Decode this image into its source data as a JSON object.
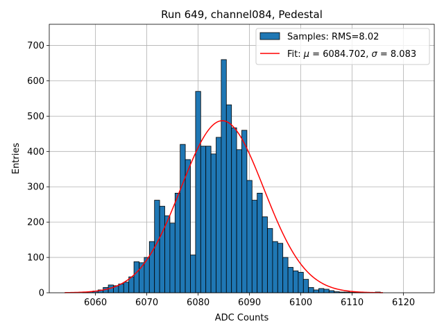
{
  "chart_data": {
    "type": "bar",
    "title": "Run 649, channel084, Pedestal",
    "xlabel": "ADC Counts",
    "ylabel": "Entries",
    "xlim": [
      6051,
      6126
    ],
    "ylim": [
      0,
      760
    ],
    "xticks": [
      6060,
      6070,
      6080,
      6090,
      6100,
      6110,
      6120
    ],
    "yticks": [
      0,
      100,
      200,
      300,
      400,
      500,
      600,
      700
    ],
    "grid": true,
    "legend": {
      "position": "top-right",
      "histogram_label": "Samples: RMS=8.02",
      "fit_label_prefix": "Fit: ",
      "fit_mu_symbol": "μ",
      "fit_mu_text": " = 6084.702, ",
      "fit_sigma_symbol": "σ",
      "fit_sigma_text": " = 8.083"
    },
    "colors": {
      "bar_fill": "#1f77b4",
      "bar_edge": "#000000",
      "fit_line": "#ff0000",
      "grid": "#b0b0b0"
    },
    "histogram": {
      "bin_width": 1,
      "bins": [
        {
          "x": 6058,
          "count": 2
        },
        {
          "x": 6059,
          "count": 3
        },
        {
          "x": 6060,
          "count": 5
        },
        {
          "x": 6061,
          "count": 8
        },
        {
          "x": 6062,
          "count": 15
        },
        {
          "x": 6063,
          "count": 22
        },
        {
          "x": 6064,
          "count": 20
        },
        {
          "x": 6065,
          "count": 25
        },
        {
          "x": 6066,
          "count": 30
        },
        {
          "x": 6067,
          "count": 45
        },
        {
          "x": 6068,
          "count": 88
        },
        {
          "x": 6069,
          "count": 85
        },
        {
          "x": 6070,
          "count": 100
        },
        {
          "x": 6071,
          "count": 145
        },
        {
          "x": 6072,
          "count": 262
        },
        {
          "x": 6073,
          "count": 245
        },
        {
          "x": 6074,
          "count": 218
        },
        {
          "x": 6075,
          "count": 197
        },
        {
          "x": 6076,
          "count": 282
        },
        {
          "x": 6077,
          "count": 420
        },
        {
          "x": 6078,
          "count": 377
        },
        {
          "x": 6079,
          "count": 107
        },
        {
          "x": 6080,
          "count": 570
        },
        {
          "x": 6081,
          "count": 415
        },
        {
          "x": 6082,
          "count": 415
        },
        {
          "x": 6083,
          "count": 393
        },
        {
          "x": 6084,
          "count": 440
        },
        {
          "x": 6085,
          "count": 660
        },
        {
          "x": 6086,
          "count": 532
        },
        {
          "x": 6087,
          "count": 467
        },
        {
          "x": 6088,
          "count": 405
        },
        {
          "x": 6089,
          "count": 460
        },
        {
          "x": 6090,
          "count": 318
        },
        {
          "x": 6091,
          "count": 262
        },
        {
          "x": 6092,
          "count": 282
        },
        {
          "x": 6093,
          "count": 215
        },
        {
          "x": 6094,
          "count": 182
        },
        {
          "x": 6095,
          "count": 145
        },
        {
          "x": 6096,
          "count": 140
        },
        {
          "x": 6097,
          "count": 100
        },
        {
          "x": 6098,
          "count": 72
        },
        {
          "x": 6099,
          "count": 62
        },
        {
          "x": 6100,
          "count": 58
        },
        {
          "x": 6101,
          "count": 38
        },
        {
          "x": 6102,
          "count": 15
        },
        {
          "x": 6103,
          "count": 8
        },
        {
          "x": 6104,
          "count": 12
        },
        {
          "x": 6105,
          "count": 10
        },
        {
          "x": 6106,
          "count": 6
        },
        {
          "x": 6107,
          "count": 3
        },
        {
          "x": 6108,
          "count": 2
        },
        {
          "x": 6109,
          "count": 2
        },
        {
          "x": 6110,
          "count": 1
        },
        {
          "x": 6111,
          "count": 1
        },
        {
          "x": 6112,
          "count": 1
        },
        {
          "x": 6113,
          "count": 1
        },
        {
          "x": 6114,
          "count": 1
        },
        {
          "x": 6115,
          "count": 2
        }
      ]
    },
    "fit": {
      "type": "gaussian",
      "mu": 6084.702,
      "sigma": 8.083,
      "amplitude": 487,
      "x_range": [
        6054,
        6116
      ]
    }
  }
}
